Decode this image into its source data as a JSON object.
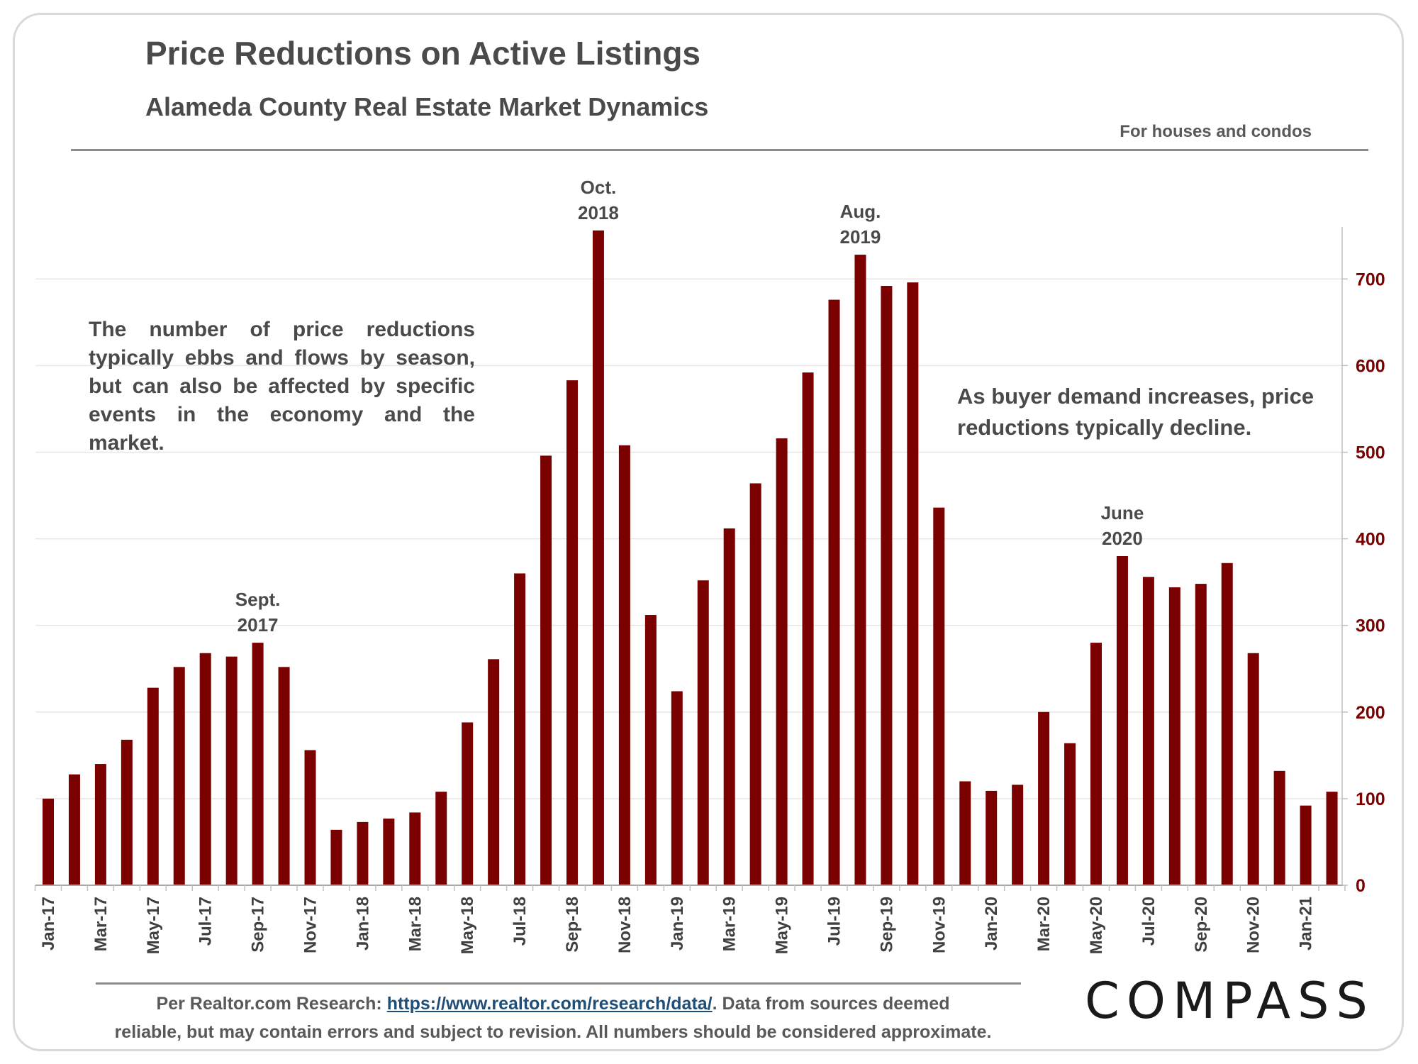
{
  "title": "Price Reductions on Active Listings",
  "subtitle": "Alameda County Real Estate Market Dynamics",
  "note": "For houses and condos",
  "annotation_left": "The number of price reductions typically ebbs and flows by season, but can also be affected by specific events in the economy and the market.",
  "annotation_right": "As buyer demand increases, price reductions typically decline.",
  "footer": {
    "prefix": "Per Realtor.com Research: ",
    "link": "https://www.realtor.com/research/data/",
    "line1_suffix": ". Data from sources deemed",
    "line2": "reliable, but may contain errors and subject to revision. All numbers should be considered approximate."
  },
  "logo": "COMPASS",
  "colors": {
    "bar": "#7b0000",
    "axis_text": "#7b0000",
    "grid": "#e6e6e6"
  },
  "chart_data": {
    "type": "bar",
    "categories": [
      "Jan-17",
      "Feb-17",
      "Mar-17",
      "Apr-17",
      "May-17",
      "Jun-17",
      "Jul-17",
      "Aug-17",
      "Sep-17",
      "Oct-17",
      "Nov-17",
      "Dec-17",
      "Jan-18",
      "Feb-18",
      "Mar-18",
      "Apr-18",
      "May-18",
      "Jun-18",
      "Jul-18",
      "Aug-18",
      "Sep-18",
      "Oct-18",
      "Nov-18",
      "Dec-18",
      "Jan-19",
      "Feb-19",
      "Mar-19",
      "Apr-19",
      "May-19",
      "Jun-19",
      "Jul-19",
      "Aug-19",
      "Sep-19",
      "Oct-19",
      "Nov-19",
      "Dec-19",
      "Jan-20",
      "Feb-20",
      "Mar-20",
      "Apr-20",
      "May-20",
      "Jun-20",
      "Jul-20",
      "Aug-20",
      "Sep-20",
      "Oct-20",
      "Nov-20",
      "Dec-20",
      "Jan-21",
      "Feb-21"
    ],
    "tick_labels": [
      "Jan-17",
      "Mar-17",
      "May-17",
      "Jul-17",
      "Sep-17",
      "Nov-17",
      "Jan-18",
      "Mar-18",
      "May-18",
      "Jul-18",
      "Sep-18",
      "Nov-18",
      "Jan-19",
      "Mar-19",
      "May-19",
      "Jul-19",
      "Sep-19",
      "Nov-19",
      "Jan-20",
      "Mar-20",
      "May-20",
      "Jul-20",
      "Sep-20",
      "Nov-20",
      "Jan-21"
    ],
    "values": [
      100,
      128,
      140,
      168,
      228,
      252,
      268,
      264,
      280,
      252,
      156,
      64,
      73,
      77,
      84,
      108,
      188,
      261,
      360,
      496,
      583,
      756,
      508,
      312,
      224,
      352,
      412,
      464,
      516,
      592,
      676,
      728,
      692,
      696,
      436,
      120,
      109,
      116,
      200,
      164,
      280,
      380,
      356,
      344,
      348,
      372,
      268,
      132,
      92,
      108
    ],
    "ylim": [
      0,
      760
    ],
    "yticks": [
      0,
      100,
      200,
      300,
      400,
      500,
      600,
      700
    ],
    "y_axis_side": "right",
    "grid": true,
    "legend": "none",
    "annotations": [
      {
        "line1": "Sept.",
        "line2": "2017",
        "index": 8
      },
      {
        "line1": "Oct.",
        "line2": "2018",
        "index": 21
      },
      {
        "line1": "Aug.",
        "line2": "2019",
        "index": 31
      },
      {
        "line1": "June",
        "line2": "2020",
        "index": 41
      }
    ]
  }
}
